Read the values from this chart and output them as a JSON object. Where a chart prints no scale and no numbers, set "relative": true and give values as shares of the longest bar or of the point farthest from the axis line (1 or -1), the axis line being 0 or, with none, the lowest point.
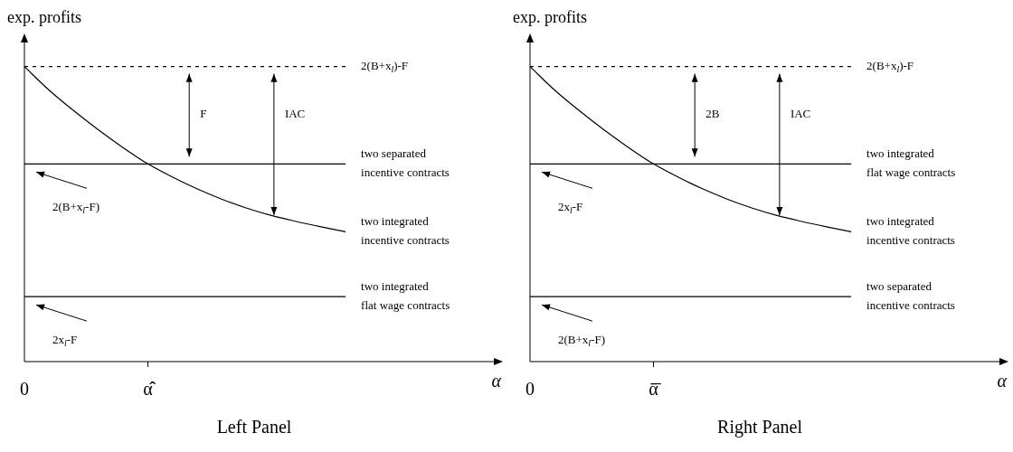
{
  "chart_data": [
    {
      "type": "line",
      "title": "Left Panel",
      "ylabel": "exp. profits",
      "xlabel": "α",
      "relative": true,
      "legend": false,
      "marker": "none",
      "categories": [
        "0",
        null,
        null,
        null,
        null,
        "α̂̂",
        null,
        null,
        null,
        null,
        null,
        null,
        null,
        null,
        null,
        null,
        null,
        null,
        null,
        null
      ],
      "series": [
        {
          "name": "2(B+x$_{l}$)-F",
          "color": "#000000",
          "line_style": "dashed",
          "values": [
            1,
            1,
            1,
            1,
            1,
            1,
            1,
            1,
            1,
            1,
            1,
            1,
            1,
            1,
            null,
            null,
            null,
            null,
            null,
            null
          ]
        },
        {
          "name": "two separated incentive contracts",
          "color": "#000000",
          "values": [
            0.67,
            0.67,
            0.67,
            0.67,
            0.67,
            0.67,
            0.67,
            0.67,
            0.67,
            0.67,
            0.67,
            0.67,
            0.67,
            0.67,
            null,
            null,
            null,
            null,
            null,
            null
          ]
        },
        {
          "name": "two integrated incentive contracts",
          "color": "#000000",
          "values": [
            1,
            0.92,
            0.85,
            0.785,
            0.725,
            0.67,
            0.625,
            0.585,
            0.55,
            0.52,
            0.495,
            0.475,
            0.457,
            0.44,
            null,
            null,
            null,
            null,
            null,
            null
          ]
        },
        {
          "name": "two integrated flat wage contracts",
          "color": "#000000",
          "values": [
            0.22,
            0.22,
            0.22,
            0.22,
            0.22,
            0.22,
            0.22,
            0.22,
            0.22,
            0.22,
            0.22,
            0.22,
            0.22,
            0.22,
            null,
            null,
            null,
            null,
            null,
            null
          ]
        }
      ],
      "annotations": [
        "2(B+x$_{l}$-F)",
        "2x$_{l}$-F",
        "F",
        "IAC"
      ]
    },
    {
      "type": "line",
      "title": "Right Panel",
      "ylabel": "exp. profits",
      "xlabel": "α",
      "relative": true,
      "legend": false,
      "marker": "none",
      "categories": [
        "0",
        null,
        null,
        null,
        null,
        "ᾱ̄",
        null,
        null,
        null,
        null,
        null,
        null,
        null,
        null,
        null,
        null,
        null,
        null,
        null,
        null
      ],
      "series": [
        {
          "name": "2(B+x$_{l}$)-F",
          "color": "#000000",
          "line_style": "dashed",
          "values": [
            1,
            1,
            1,
            1,
            1,
            1,
            1,
            1,
            1,
            1,
            1,
            1,
            1,
            1,
            null,
            null,
            null,
            null,
            null,
            null
          ]
        },
        {
          "name": "two integrated flat wage contracts",
          "color": "#000000",
          "values": [
            0.67,
            0.67,
            0.67,
            0.67,
            0.67,
            0.67,
            0.67,
            0.67,
            0.67,
            0.67,
            0.67,
            0.67,
            0.67,
            0.67,
            null,
            null,
            null,
            null,
            null,
            null
          ]
        },
        {
          "name": "two integrated incentive contracts",
          "color": "#000000",
          "values": [
            1,
            0.92,
            0.85,
            0.785,
            0.725,
            0.67,
            0.625,
            0.585,
            0.55,
            0.52,
            0.495,
            0.475,
            0.457,
            0.44,
            null,
            null,
            null,
            null,
            null,
            null
          ]
        },
        {
          "name": "two separated incentive contracts",
          "color": "#000000",
          "values": [
            0.22,
            0.22,
            0.22,
            0.22,
            0.22,
            0.22,
            0.22,
            0.22,
            0.22,
            0.22,
            0.22,
            0.22,
            0.22,
            0.22,
            null,
            null,
            null,
            null,
            null,
            null
          ]
        }
      ],
      "annotations": [
        "2x$_{l}$-F",
        "2(B+x$_{l}$-F)",
        "2B",
        "IAC"
      ]
    }
  ]
}
